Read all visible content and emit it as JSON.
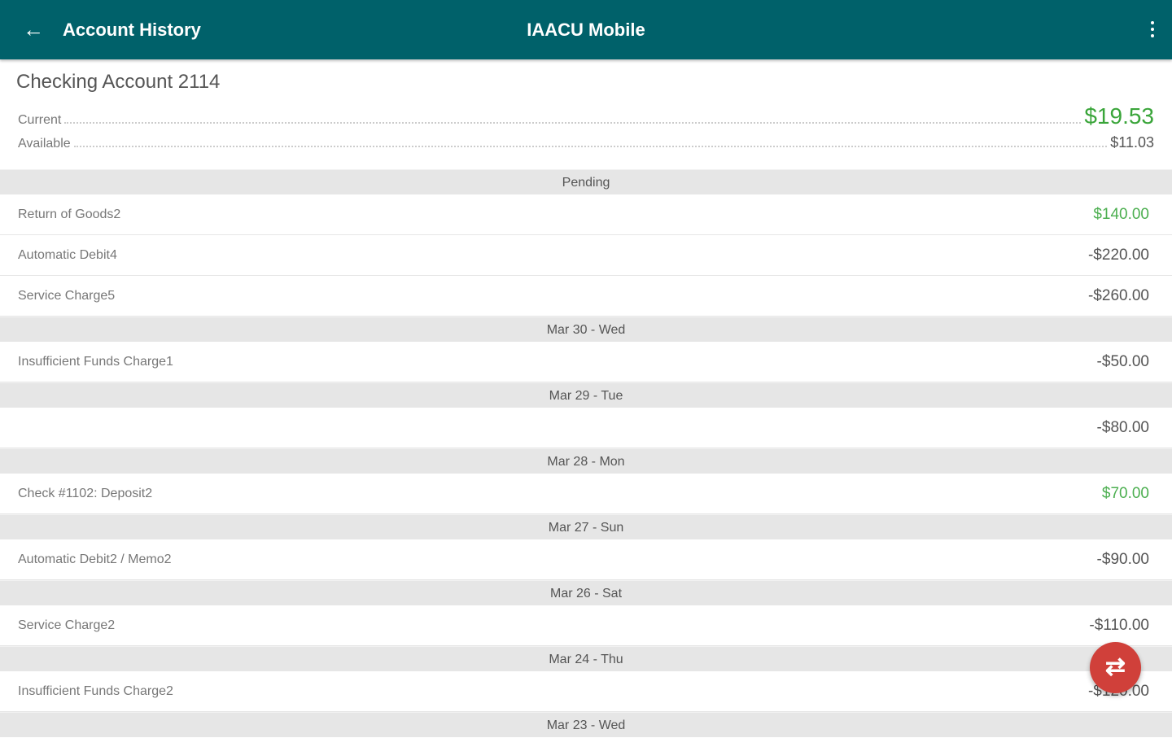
{
  "header": {
    "title": "Account History",
    "app_name": "IAACU Mobile",
    "back_icon": "arrow-left-icon",
    "menu_icon": "more-vert-icon"
  },
  "account": {
    "name": "Checking Account 2114",
    "current_label": "Current",
    "current_value": "$19.53",
    "available_label": "Available",
    "available_value": "$11.03"
  },
  "groups": [
    {
      "label": "Pending",
      "items": [
        {
          "desc": "Return of Goods2",
          "amount": "$140.00",
          "positive": true
        },
        {
          "desc": "Automatic Debit4",
          "amount": "-$220.00"
        },
        {
          "desc": "Service Charge5",
          "amount": "-$260.00"
        }
      ]
    },
    {
      "label": "Mar 30 - Wed",
      "items": [
        {
          "desc": "Insufficient Funds Charge1",
          "amount": "-$50.00"
        }
      ]
    },
    {
      "label": "Mar 29 - Tue",
      "items": [
        {
          "desc": "",
          "amount": "-$80.00"
        }
      ]
    },
    {
      "label": "Mar 28 - Mon",
      "items": [
        {
          "desc": "Check #1102: Deposit2",
          "amount": "$70.00",
          "positive": true
        }
      ]
    },
    {
      "label": "Mar 27 - Sun",
      "items": [
        {
          "desc": "Automatic Debit2 / Memo2",
          "amount": "-$90.00"
        }
      ]
    },
    {
      "label": "Mar 26 - Sat",
      "items": [
        {
          "desc": "Service Charge2",
          "amount": "-$110.00"
        }
      ]
    },
    {
      "label": "Mar 24 - Thu",
      "items": [
        {
          "desc": "Insufficient Funds Charge2",
          "amount": "-$120.00"
        }
      ]
    },
    {
      "label": "Mar 23 - Wed",
      "items": []
    }
  ],
  "fab": {
    "icon": "swap-horiz-icon",
    "symbol": "⇄"
  },
  "colors": {
    "appbar": "#00616a",
    "positive": "#4caf50",
    "fab": "#d0403a"
  }
}
